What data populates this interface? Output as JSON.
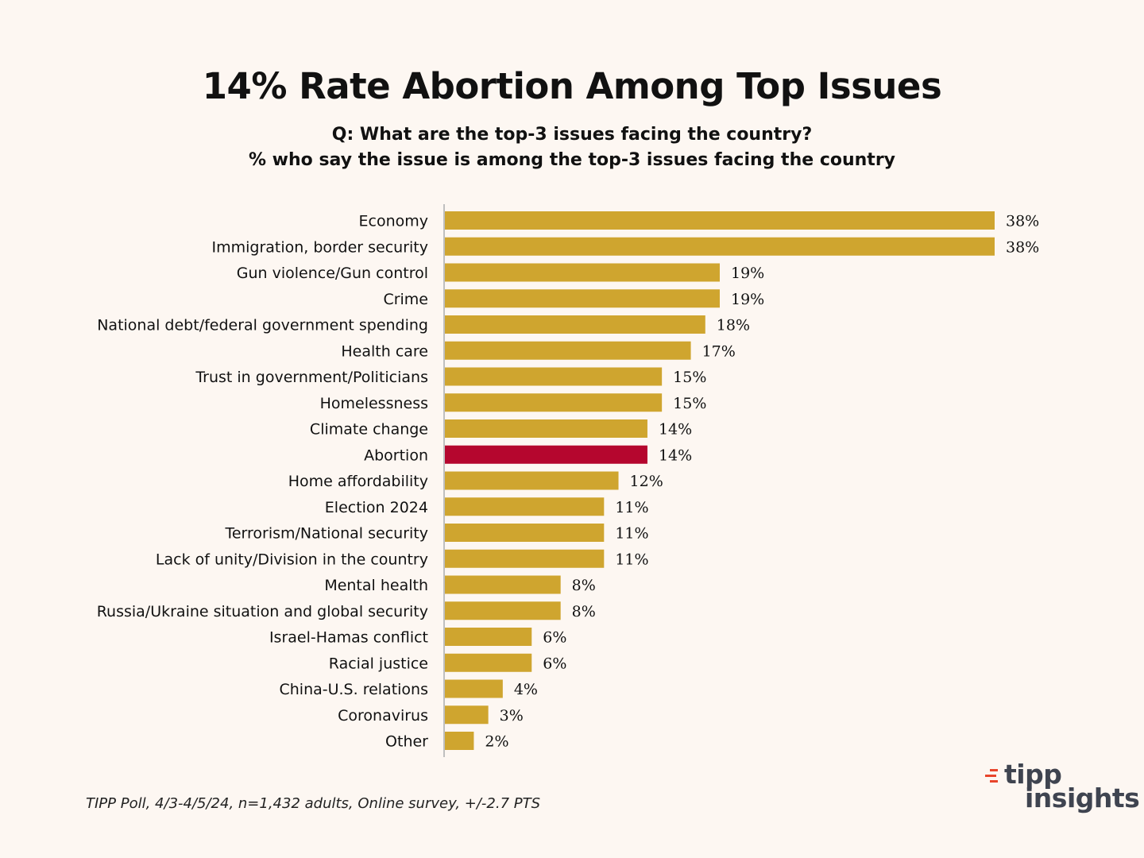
{
  "title": "14% Rate Abortion Among Top Issues",
  "subtitle_line1": "Q:  What are the top-3 issues facing the country?",
  "subtitle_line2": "% who say the issue is among the top-3 issues facing the country",
  "colors": {
    "background": "#fdf7f2",
    "bar": "#cfa52f",
    "highlight": "#b5062e",
    "axis": "#bfbfbf",
    "logo_accent": "#e8452c",
    "logo_text": "#3f4450"
  },
  "chart_data": {
    "type": "bar",
    "orientation": "horizontal",
    "title": "14% Rate Abortion Among Top Issues",
    "xlabel": "",
    "ylabel": "",
    "xlim": [
      0,
      38
    ],
    "value_suffix": "%",
    "highlight_category": "Abortion",
    "categories": [
      "Economy",
      "Immigration, border security",
      "Gun violence/Gun control",
      "Crime",
      "National debt/federal government spending",
      "Health care",
      "Trust in government/Politicians",
      "Homelessness",
      "Climate change",
      "Abortion",
      "Home affordability",
      "Election 2024",
      "Terrorism/National security",
      "Lack of unity/Division in the country",
      "Mental health",
      "Russia/Ukraine situation and global security",
      "Israel-Hamas conflict",
      "Racial justice",
      "China-U.S. relations",
      "Coronavirus",
      "Other"
    ],
    "values": [
      38,
      38,
      19,
      19,
      18,
      17,
      15,
      15,
      14,
      14,
      12,
      11,
      11,
      11,
      8,
      8,
      6,
      6,
      4,
      3,
      2
    ]
  },
  "footnote": "TIPP Poll, 4/3-4/5/24, n=1,432 adults, Online survey, +/-2.7 PTS",
  "logo": {
    "line1": "tipp",
    "line2": "insights",
    "icon": "tipp-insights-logo-mark-icon"
  }
}
